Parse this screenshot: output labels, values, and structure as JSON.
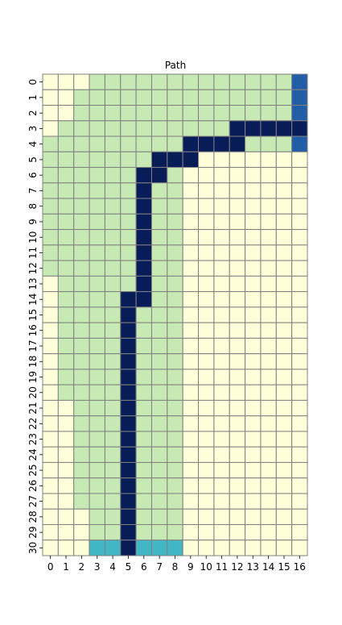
{
  "chart_data": {
    "type": "heatmap",
    "title": "Path",
    "xlabel": "",
    "ylabel": "",
    "x_ticks": [
      "0",
      "1",
      "2",
      "3",
      "4",
      "5",
      "6",
      "7",
      "8",
      "9",
      "10",
      "11",
      "12",
      "13",
      "14",
      "15",
      "16"
    ],
    "y_ticks": [
      "0",
      "1",
      "2",
      "3",
      "4",
      "5",
      "6",
      "7",
      "8",
      "9",
      "10",
      "11",
      "12",
      "13",
      "14",
      "15",
      "16",
      "17",
      "18",
      "19",
      "20",
      "21",
      "22",
      "23",
      "24",
      "25",
      "26",
      "27",
      "28",
      "29",
      "30"
    ],
    "colorbar": false,
    "grid_lines": true,
    "grid_line_color": "#808080",
    "value_range": [
      0,
      4
    ],
    "value_colors": {
      "0": "#ffffd9",
      "1": "#c7e9b4",
      "2": "#41b6c4",
      "3": "#225ea8",
      "4": "#081d58"
    },
    "cells": [
      [
        0,
        0,
        0,
        1,
        1,
        1,
        1,
        1,
        1,
        1,
        1,
        1,
        1,
        1,
        1,
        1,
        3
      ],
      [
        0,
        0,
        1,
        1,
        1,
        1,
        1,
        1,
        1,
        1,
        1,
        1,
        1,
        1,
        1,
        1,
        3
      ],
      [
        0,
        0,
        1,
        1,
        1,
        1,
        1,
        1,
        1,
        1,
        1,
        1,
        1,
        1,
        1,
        1,
        3
      ],
      [
        0,
        1,
        1,
        1,
        1,
        1,
        1,
        1,
        1,
        1,
        1,
        1,
        4,
        4,
        4,
        4,
        4
      ],
      [
        1,
        1,
        1,
        1,
        1,
        1,
        1,
        1,
        1,
        4,
        4,
        4,
        4,
        1,
        1,
        1,
        3
      ],
      [
        1,
        1,
        1,
        1,
        1,
        1,
        1,
        4,
        4,
        4,
        0,
        0,
        0,
        0,
        0,
        0,
        0
      ],
      [
        1,
        1,
        1,
        1,
        1,
        1,
        4,
        4,
        1,
        0,
        0,
        0,
        0,
        0,
        0,
        0,
        0
      ],
      [
        1,
        1,
        1,
        1,
        1,
        1,
        4,
        1,
        1,
        0,
        0,
        0,
        0,
        0,
        0,
        0,
        0
      ],
      [
        1,
        1,
        1,
        1,
        1,
        1,
        4,
        1,
        1,
        0,
        0,
        0,
        0,
        0,
        0,
        0,
        0
      ],
      [
        1,
        1,
        1,
        1,
        1,
        1,
        4,
        1,
        1,
        0,
        0,
        0,
        0,
        0,
        0,
        0,
        0
      ],
      [
        1,
        1,
        1,
        1,
        1,
        1,
        4,
        1,
        1,
        0,
        0,
        0,
        0,
        0,
        0,
        0,
        0
      ],
      [
        1,
        1,
        1,
        1,
        1,
        1,
        4,
        1,
        1,
        0,
        0,
        0,
        0,
        0,
        0,
        0,
        0
      ],
      [
        1,
        1,
        1,
        1,
        1,
        1,
        4,
        1,
        1,
        0,
        0,
        0,
        0,
        0,
        0,
        0,
        0
      ],
      [
        0,
        1,
        1,
        1,
        1,
        1,
        4,
        1,
        1,
        0,
        0,
        0,
        0,
        0,
        0,
        0,
        0
      ],
      [
        0,
        1,
        1,
        1,
        1,
        4,
        4,
        1,
        1,
        0,
        0,
        0,
        0,
        0,
        0,
        0,
        0
      ],
      [
        0,
        1,
        1,
        1,
        1,
        4,
        1,
        1,
        1,
        0,
        0,
        0,
        0,
        0,
        0,
        0,
        0
      ],
      [
        0,
        1,
        1,
        1,
        1,
        4,
        1,
        1,
        1,
        0,
        0,
        0,
        0,
        0,
        0,
        0,
        0
      ],
      [
        0,
        1,
        1,
        1,
        1,
        4,
        1,
        1,
        1,
        0,
        0,
        0,
        0,
        0,
        0,
        0,
        0
      ],
      [
        0,
        1,
        1,
        1,
        1,
        4,
        1,
        1,
        1,
        0,
        0,
        0,
        0,
        0,
        0,
        0,
        0
      ],
      [
        0,
        1,
        1,
        1,
        1,
        4,
        1,
        1,
        1,
        0,
        0,
        0,
        0,
        0,
        0,
        0,
        0
      ],
      [
        0,
        1,
        1,
        1,
        1,
        4,
        1,
        1,
        1,
        0,
        0,
        0,
        0,
        0,
        0,
        0,
        0
      ],
      [
        0,
        0,
        1,
        1,
        1,
        4,
        1,
        1,
        1,
        0,
        0,
        0,
        0,
        0,
        0,
        0,
        0
      ],
      [
        0,
        0,
        1,
        1,
        1,
        4,
        1,
        1,
        1,
        0,
        0,
        0,
        0,
        0,
        0,
        0,
        0
      ],
      [
        0,
        0,
        1,
        1,
        1,
        4,
        1,
        1,
        1,
        0,
        0,
        0,
        0,
        0,
        0,
        0,
        0
      ],
      [
        0,
        0,
        1,
        1,
        1,
        4,
        1,
        1,
        1,
        0,
        0,
        0,
        0,
        0,
        0,
        0,
        0
      ],
      [
        0,
        0,
        1,
        1,
        1,
        4,
        1,
        1,
        1,
        0,
        0,
        0,
        0,
        0,
        0,
        0,
        0
      ],
      [
        0,
        0,
        1,
        1,
        1,
        4,
        1,
        1,
        1,
        0,
        0,
        0,
        0,
        0,
        0,
        0,
        0
      ],
      [
        0,
        0,
        1,
        1,
        1,
        4,
        1,
        1,
        1,
        0,
        0,
        0,
        0,
        0,
        0,
        0,
        0
      ],
      [
        0,
        0,
        0,
        1,
        1,
        4,
        1,
        1,
        1,
        0,
        0,
        0,
        0,
        0,
        0,
        0,
        0
      ],
      [
        0,
        0,
        0,
        1,
        1,
        4,
        1,
        1,
        1,
        0,
        0,
        0,
        0,
        0,
        0,
        0,
        0
      ],
      [
        0,
        0,
        0,
        2,
        2,
        4,
        2,
        2,
        2,
        0,
        0,
        0,
        0,
        0,
        0,
        0,
        0
      ]
    ]
  }
}
